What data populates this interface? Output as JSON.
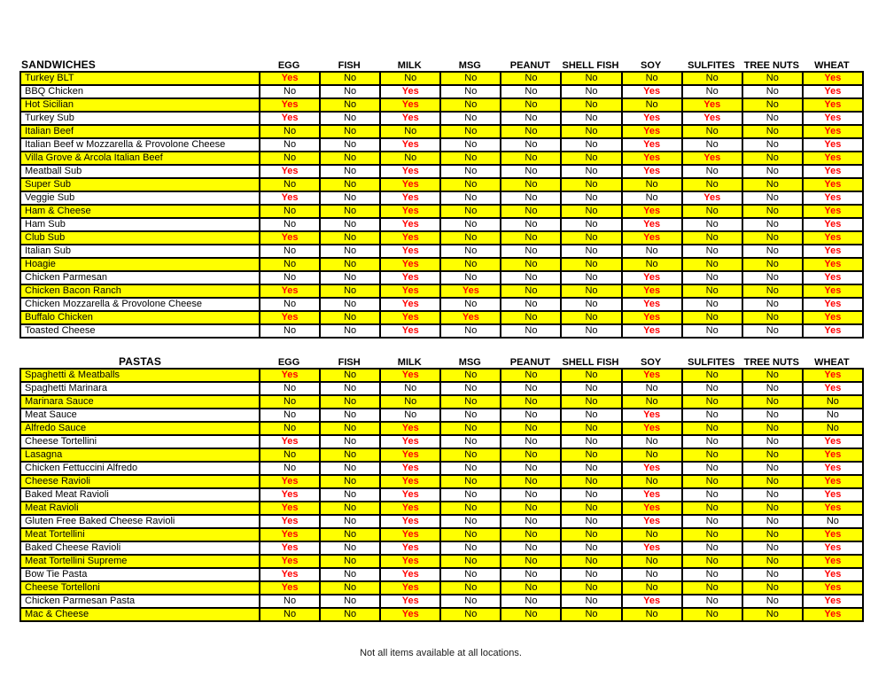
{
  "page": {
    "footer_note": "Not all items available at all locations."
  },
  "colors": {
    "row_highlight": "#ffff00",
    "yes_text": "#ff0000",
    "no_text": "#000000",
    "border": "#000000",
    "background": "#ffffff"
  },
  "allergen_columns": [
    "EGG",
    "FISH",
    "MILK",
    "MSG",
    "PEANUT",
    "SHELL FISH",
    "SOY",
    "SULFITES",
    "TREE NUTS",
    "WHEAT"
  ],
  "sections": [
    {
      "title": "SANDWICHES",
      "title_align": "left",
      "rows": [
        {
          "name": "Turkey BLT",
          "values": [
            "Yes",
            "No",
            "No",
            "No",
            "No",
            "No",
            "No",
            "No",
            "No",
            "Yes"
          ]
        },
        {
          "name": "BBQ Chicken",
          "values": [
            "No",
            "No",
            "Yes",
            "No",
            "No",
            "No",
            "Yes",
            "No",
            "No",
            "Yes"
          ]
        },
        {
          "name": "Hot Sicilian",
          "values": [
            "Yes",
            "No",
            "Yes",
            "No",
            "No",
            "No",
            "No",
            "Yes",
            "No",
            "Yes"
          ]
        },
        {
          "name": "Turkey Sub",
          "values": [
            "Yes",
            "No",
            "Yes",
            "No",
            "No",
            "No",
            "Yes",
            "Yes",
            "No",
            "Yes"
          ]
        },
        {
          "name": "Italian Beef",
          "values": [
            "No",
            "No",
            "No",
            "No",
            "No",
            "No",
            "Yes",
            "No",
            "No",
            "Yes"
          ]
        },
        {
          "name": "Italian Beef w Mozzarella & Provolone Cheese",
          "values": [
            "No",
            "No",
            "Yes",
            "No",
            "No",
            "No",
            "Yes",
            "No",
            "No",
            "Yes"
          ]
        },
        {
          "name": "Villa Grove & Arcola Italian Beef",
          "values": [
            "No",
            "No",
            "No",
            "No",
            "No",
            "No",
            "Yes",
            "Yes",
            "No",
            "Yes"
          ]
        },
        {
          "name": "Meatball Sub",
          "values": [
            "Yes",
            "No",
            "Yes",
            "No",
            "No",
            "No",
            "Yes",
            "No",
            "No",
            "Yes"
          ]
        },
        {
          "name": "Super Sub",
          "values": [
            "No",
            "No",
            "Yes",
            "No",
            "No",
            "No",
            "No",
            "No",
            "No",
            "Yes"
          ]
        },
        {
          "name": "Veggie Sub",
          "values": [
            "Yes",
            "No",
            "Yes",
            "No",
            "No",
            "No",
            "No",
            "Yes",
            "No",
            "Yes"
          ]
        },
        {
          "name": "Ham & Cheese",
          "values": [
            "No",
            "No",
            "Yes",
            "No",
            "No",
            "No",
            "Yes",
            "No",
            "No",
            "Yes"
          ]
        },
        {
          "name": "Ham Sub",
          "values": [
            "No",
            "No",
            "Yes",
            "No",
            "No",
            "No",
            "Yes",
            "No",
            "No",
            "Yes"
          ]
        },
        {
          "name": "Club Sub",
          "values": [
            "Yes",
            "No",
            "Yes",
            "No",
            "No",
            "No",
            "Yes",
            "No",
            "No",
            "Yes"
          ]
        },
        {
          "name": "Italian Sub",
          "values": [
            "No",
            "No",
            "Yes",
            "No",
            "No",
            "No",
            "No",
            "No",
            "No",
            "Yes"
          ]
        },
        {
          "name": "Hoagie",
          "values": [
            "No",
            "No",
            "Yes",
            "No",
            "No",
            "No",
            "No",
            "No",
            "No",
            "Yes"
          ]
        },
        {
          "name": "Chicken Parmesan",
          "values": [
            "No",
            "No",
            "Yes",
            "No",
            "No",
            "No",
            "Yes",
            "No",
            "No",
            "Yes"
          ]
        },
        {
          "name": "Chicken Bacon Ranch",
          "values": [
            "Yes",
            "No",
            "Yes",
            "Yes",
            "No",
            "No",
            "Yes",
            "No",
            "No",
            "Yes"
          ]
        },
        {
          "name": "Chicken Mozzarella & Provolone Cheese",
          "values": [
            "No",
            "No",
            "Yes",
            "No",
            "No",
            "No",
            "Yes",
            "No",
            "No",
            "Yes"
          ]
        },
        {
          "name": "Buffalo Chicken",
          "values": [
            "Yes",
            "No",
            "Yes",
            "Yes",
            "No",
            "No",
            "Yes",
            "No",
            "No",
            "Yes"
          ]
        },
        {
          "name": "Toasted Cheese",
          "values": [
            "No",
            "No",
            "Yes",
            "No",
            "No",
            "No",
            "Yes",
            "No",
            "No",
            "Yes"
          ]
        }
      ]
    },
    {
      "title": "PASTAS",
      "title_align": "center",
      "rows": [
        {
          "name": "Spaghetti & Meatballs",
          "values": [
            "Yes",
            "No",
            "Yes",
            "No",
            "No",
            "No",
            "Yes",
            "No",
            "No",
            "Yes"
          ]
        },
        {
          "name": "Spaghetti Marinara",
          "values": [
            "No",
            "No",
            "No",
            "No",
            "No",
            "No",
            "No",
            "No",
            "No",
            "Yes"
          ]
        },
        {
          "name": "Marinara Sauce",
          "values": [
            "No",
            "No",
            "No",
            "No",
            "No",
            "No",
            "No",
            "No",
            "No",
            "No"
          ]
        },
        {
          "name": "Meat Sauce",
          "values": [
            "No",
            "No",
            "No",
            "No",
            "No",
            "No",
            "Yes",
            "No",
            "No",
            "No"
          ]
        },
        {
          "name": "Alfredo Sauce",
          "values": [
            "No",
            "No",
            "Yes",
            "No",
            "No",
            "No",
            "Yes",
            "No",
            "No",
            "No"
          ]
        },
        {
          "name": "Cheese Tortellini",
          "values": [
            "Yes",
            "No",
            "Yes",
            "No",
            "No",
            "No",
            "No",
            "No",
            "No",
            "Yes"
          ]
        },
        {
          "name": "Lasagna",
          "values": [
            "No",
            "No",
            "Yes",
            "No",
            "No",
            "No",
            "No",
            "No",
            "No",
            "Yes"
          ]
        },
        {
          "name": "Chicken Fettuccini Alfredo",
          "values": [
            "No",
            "No",
            "Yes",
            "No",
            "No",
            "No",
            "Yes",
            "No",
            "No",
            "Yes"
          ]
        },
        {
          "name": "Cheese Ravioli",
          "values": [
            "Yes",
            "No",
            "Yes",
            "No",
            "No",
            "No",
            "No",
            "No",
            "No",
            "Yes"
          ]
        },
        {
          "name": "Baked Meat Ravioli",
          "values": [
            "Yes",
            "No",
            "Yes",
            "No",
            "No",
            "No",
            "Yes",
            "No",
            "No",
            "Yes"
          ]
        },
        {
          "name": "Meat Ravioli",
          "values": [
            "Yes",
            "No",
            "Yes",
            "No",
            "No",
            "No",
            "Yes",
            "No",
            "No",
            "Yes"
          ]
        },
        {
          "name": "Gluten Free Baked Cheese Ravioli",
          "values": [
            "Yes",
            "No",
            "Yes",
            "No",
            "No",
            "No",
            "Yes",
            "No",
            "No",
            "No"
          ]
        },
        {
          "name": "Meat Tortellini",
          "values": [
            "Yes",
            "No",
            "Yes",
            "No",
            "No",
            "No",
            "No",
            "No",
            "No",
            "Yes"
          ]
        },
        {
          "name": "Baked Cheese Ravioli",
          "values": [
            "Yes",
            "No",
            "Yes",
            "No",
            "No",
            "No",
            "Yes",
            "No",
            "No",
            "Yes"
          ]
        },
        {
          "name": "Meat Tortellini Supreme",
          "values": [
            "Yes",
            "No",
            "Yes",
            "No",
            "No",
            "No",
            "No",
            "No",
            "No",
            "Yes"
          ]
        },
        {
          "name": "Bow Tie Pasta",
          "values": [
            "Yes",
            "No",
            "Yes",
            "No",
            "No",
            "No",
            "No",
            "No",
            "No",
            "Yes"
          ]
        },
        {
          "name": "Cheese Tortelloni",
          "values": [
            "Yes",
            "No",
            "Yes",
            "No",
            "No",
            "No",
            "No",
            "No",
            "No",
            "Yes"
          ]
        },
        {
          "name": "Chicken Parmesan Pasta",
          "values": [
            "No",
            "No",
            "Yes",
            "No",
            "No",
            "No",
            "Yes",
            "No",
            "No",
            "Yes"
          ]
        },
        {
          "name": "Mac & Cheese",
          "values": [
            "No",
            "No",
            "Yes",
            "No",
            "No",
            "No",
            "No",
            "No",
            "No",
            "Yes"
          ]
        }
      ]
    }
  ]
}
